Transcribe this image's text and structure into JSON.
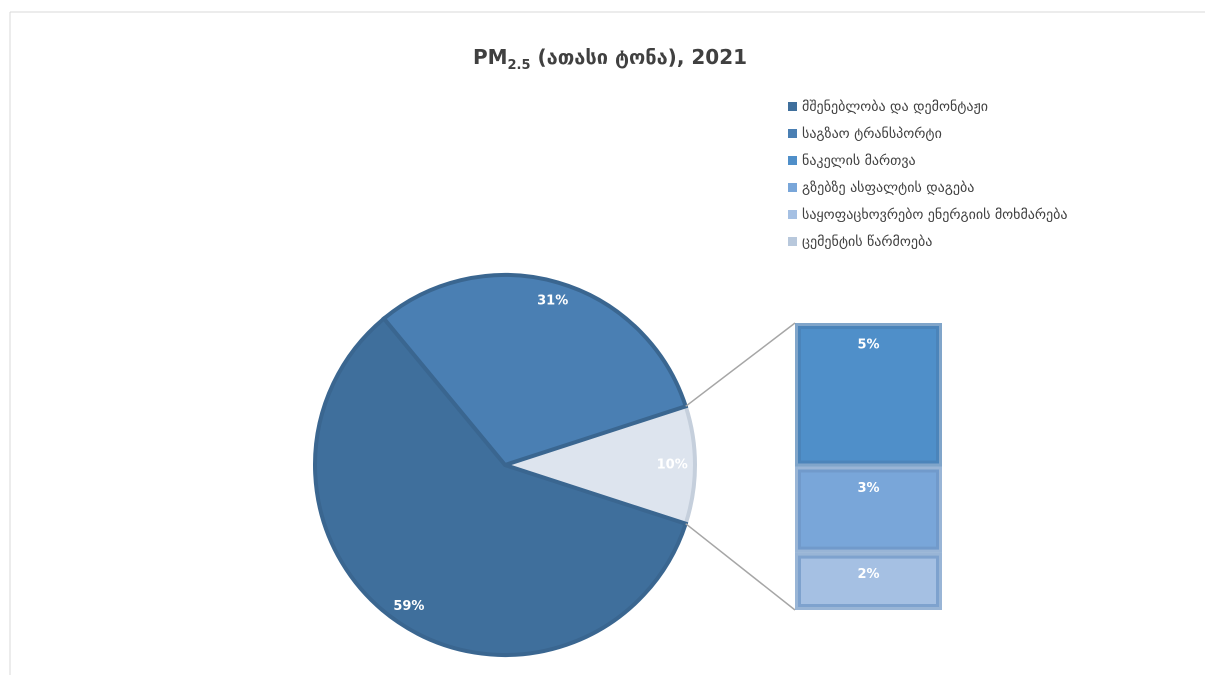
{
  "chart_data": {
    "type": "pie-of-bar",
    "title": {
      "main": "PM",
      "sub": "2.5",
      "rest": " (ათასი ტონა), 2021"
    },
    "categories": [
      "მშენებლობა და დემონტაჟი",
      "საგზაო ტრანსპორტი",
      "ნაკელის მართვა",
      "გზებზე ასფალტის დაგება",
      "საყოფაცხოვრებო ენერგიის მოხმარება",
      "ცემენტის წარმოება"
    ],
    "values": [
      59,
      31,
      5,
      3,
      2,
      0
    ],
    "value_labels": [
      "59%",
      "31%",
      "5%",
      "3%",
      "2%",
      null
    ],
    "colors": [
      "#3f6f9c",
      "#4a7fb3",
      "#4f8fc9",
      "#79a6d9",
      "#a5c0e3",
      "#b8c8dc"
    ],
    "bar_count": 4,
    "other": {
      "value": 10,
      "label": "10%",
      "color": "#dde4ee"
    },
    "legend": "top-right"
  }
}
